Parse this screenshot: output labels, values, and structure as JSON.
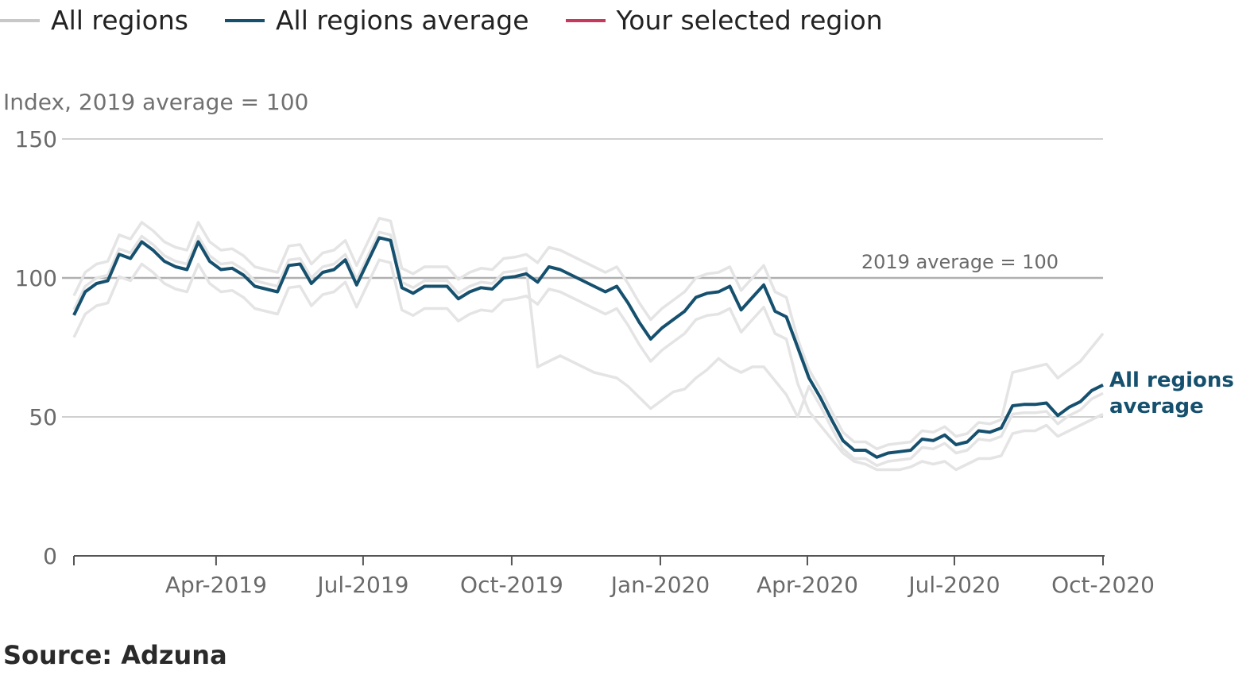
{
  "legend": [
    {
      "label": "All regions",
      "color": "#c8c8c8"
    },
    {
      "label": "All regions average",
      "color": "#15506e"
    },
    {
      "label": "Your selected region",
      "color": "#c8375c"
    }
  ],
  "source": "Source: Adzuna",
  "chart_data": {
    "type": "line",
    "ylabel": "Index, 2019 average = 100",
    "ylim": [
      0,
      150
    ],
    "yticks": [
      "0",
      "50",
      "100",
      "150"
    ],
    "x_range": [
      "2019-01-03",
      "2020-10-01"
    ],
    "frequency": "weekly",
    "xticks": [
      "Apr-2019",
      "Jul-2019",
      "Oct-2019",
      "Jan-2020",
      "Apr-2020",
      "Jul-2020",
      "Oct-2020"
    ],
    "grid": true,
    "reference_line": {
      "value": 100,
      "label": "2019 average = 100"
    },
    "end_label": "All regions average",
    "average": {
      "name": "All regions average",
      "color": "#15506e",
      "values": [
        86.6,
        95,
        98,
        99,
        108.5,
        107,
        113,
        110,
        106,
        104,
        103,
        113,
        106,
        103,
        103.5,
        101,
        97,
        96,
        95,
        104.5,
        105,
        98,
        102,
        103,
        106.5,
        97.5,
        106,
        114.5,
        113.5,
        96.5,
        94.5,
        97,
        97,
        97,
        92.5,
        95,
        96.5,
        96,
        100,
        100.5,
        101.5,
        98.5,
        104,
        103,
        101,
        99,
        97,
        95,
        97,
        91,
        84,
        78,
        82,
        85,
        88,
        93,
        94.5,
        95,
        97,
        88.5,
        93,
        97.5,
        88,
        86,
        75,
        64,
        57,
        49,
        41.5,
        38,
        38,
        35.5,
        37,
        37.5,
        38,
        42,
        41.5,
        43.5,
        40,
        41,
        45,
        44.5,
        46,
        54,
        54.5,
        54.5,
        55,
        50.5,
        53.5,
        55.5,
        59.5,
        61.5
      ]
    },
    "regions_color": "#e4e4e4",
    "regions": [
      [
        93.6,
        102,
        105,
        106,
        115.5,
        114,
        120,
        117,
        113,
        111,
        110,
        120,
        113,
        110,
        110.5,
        108,
        104,
        103,
        102,
        111.5,
        112,
        105,
        109,
        110,
        113.5,
        104.5,
        113,
        121.5,
        120.5,
        103.5,
        101.5,
        104,
        104,
        104,
        99.5,
        102,
        103.5,
        103,
        107,
        107.5,
        108.5,
        105.5,
        111,
        110,
        108,
        106,
        104,
        102,
        104,
        98,
        91,
        85,
        89,
        92,
        95,
        100,
        101.5,
        102,
        104,
        95.5,
        100,
        104.5,
        95,
        93,
        78,
        67,
        60,
        52,
        44.5,
        41,
        41,
        38.5,
        40,
        40.5,
        41,
        45,
        44.5,
        46.5,
        43,
        44,
        48,
        47.5,
        49,
        66,
        67,
        68,
        69,
        64,
        67,
        70,
        75,
        80
      ],
      [
        78.6,
        87,
        90,
        91,
        100.5,
        99,
        105,
        102,
        98,
        96,
        95,
        105,
        98,
        95,
        95.5,
        93,
        89,
        88,
        87,
        96.5,
        97,
        90,
        94,
        95,
        98.5,
        89.5,
        98,
        106.5,
        105.5,
        88.5,
        86.5,
        89,
        89,
        89,
        84.5,
        87,
        88.5,
        88,
        92,
        92.5,
        93.5,
        90.5,
        96,
        95,
        93,
        91,
        89,
        87,
        89,
        83,
        76,
        70,
        74,
        77,
        80,
        85,
        86.5,
        87,
        89,
        80.5,
        85,
        89.5,
        80,
        78,
        62,
        52,
        47,
        42,
        37,
        34,
        33,
        31,
        31,
        31,
        32,
        34,
        33,
        34,
        31,
        33,
        35,
        35,
        36,
        44,
        45,
        45,
        47,
        43,
        45,
        47,
        49,
        51
      ],
      [
        88.6,
        97,
        100,
        101,
        110.5,
        109,
        115,
        112,
        108,
        106,
        105,
        115,
        108,
        105,
        105.5,
        103,
        99,
        98,
        97,
        106.5,
        107,
        100,
        104,
        105,
        108.5,
        99.5,
        108,
        116.5,
        115.5,
        98.5,
        96.5,
        99,
        99,
        99,
        94.5,
        97,
        98.5,
        98,
        102,
        102.5,
        103.5,
        68,
        70,
        72,
        70,
        68,
        66,
        65,
        64,
        61,
        57,
        53,
        56,
        59,
        60,
        64,
        67,
        71,
        68,
        66,
        68,
        68,
        63,
        58,
        50,
        61,
        54,
        46,
        38.5,
        35,
        35,
        32.5,
        34,
        34.5,
        35,
        39,
        38.5,
        40.5,
        37,
        38,
        42,
        41.5,
        43,
        51,
        51.5,
        51.5,
        52,
        47.5,
        50.5,
        52.5,
        56.5,
        58.5
      ]
    ]
  }
}
